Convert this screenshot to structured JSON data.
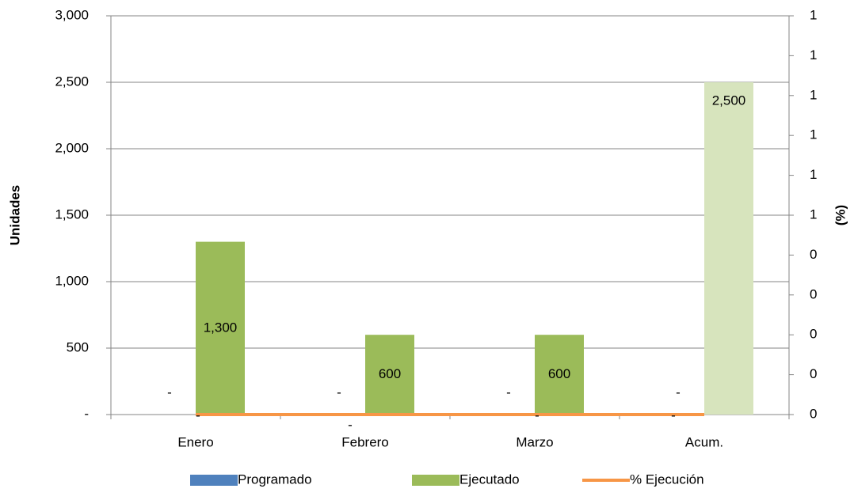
{
  "chart_data": {
    "type": "bar",
    "categories": [
      "Enero",
      "Febrero",
      "Marzo",
      "Acum."
    ],
    "y_label": "Unidades",
    "y2_label": "(%)",
    "series": [
      {
        "name": "Programado",
        "color": "#4f81bd",
        "values": [
          0,
          0,
          0,
          0
        ],
        "value_labels": [
          "-",
          "-",
          "-",
          "-"
        ]
      },
      {
        "name": "Ejecutado",
        "color": "#9bbb59",
        "colors": [
          "#9bbb59",
          "#9bbb59",
          "#9bbb59",
          "#d7e4bd"
        ],
        "values": [
          1300,
          600,
          600,
          2500
        ],
        "value_labels": [
          "1,300",
          "600",
          "600",
          "2,500"
        ]
      },
      {
        "name": "% Ejecución",
        "type": "line",
        "axis": "y2",
        "color": "#f79646",
        "values": [
          0,
          0,
          0,
          0
        ],
        "value_labels": [
          "-",
          "-",
          "-",
          "-"
        ]
      }
    ],
    "ylim": [
      0,
      3000
    ],
    "yticks": [
      {
        "value": 0,
        "label": "-"
      },
      500,
      {
        "value": 1000,
        "label": "1,000"
      },
      {
        "value": 1500,
        "label": "1,500"
      },
      {
        "value": 2000,
        "label": "2,000"
      },
      {
        "value": 2500,
        "label": "2,500"
      },
      {
        "value": 3000,
        "label": "3,000"
      }
    ],
    "y2lim": [
      0,
      1
    ],
    "y2ticks": [
      0,
      {
        "value": 0.1,
        "label": "0"
      },
      {
        "value": 0.2,
        "label": "0"
      },
      {
        "value": 0.3,
        "label": "0"
      },
      {
        "value": 0.4,
        "label": "0"
      },
      {
        "value": 0.5,
        "label": "1"
      },
      {
        "value": 0.6,
        "label": "1"
      },
      {
        "value": 0.7,
        "label": "1"
      },
      {
        "value": 0.8,
        "label": "1"
      },
      {
        "value": 0.9,
        "label": "1"
      },
      1
    ],
    "grid": true,
    "legend": "bottom"
  }
}
